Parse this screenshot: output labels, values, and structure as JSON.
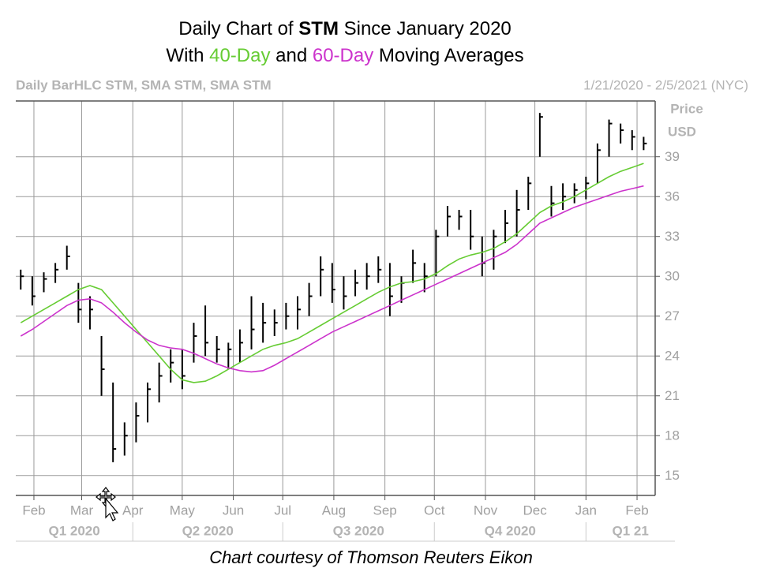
{
  "chart_data": {
    "type": "hlc",
    "title_lines": [
      [
        "Daily Chart of ",
        "STM",
        " Since January 2020"
      ],
      [
        "With ",
        "40-Day",
        " and ",
        "60-Day",
        " Moving Averages"
      ]
    ],
    "info_left": "Daily BarHLC STM, SMA STM, SMA STM",
    "info_right": "1/21/2020 - 2/5/2021 (NYC)",
    "y_axis_label": [
      "Price",
      "USD"
    ],
    "footer": "Chart courtesy of Thomson Reuters Eikon",
    "grid": true,
    "ylim": [
      13.5,
      43.2
    ],
    "yticks": [
      15,
      18,
      21,
      24,
      27,
      30,
      33,
      36,
      39
    ],
    "xlim": [
      "2020-01-21",
      "2021-02-12"
    ],
    "xticks": [
      {
        "value": "2020-02-01",
        "label": "Feb"
      },
      {
        "value": "2020-03-01",
        "label": "Mar"
      },
      {
        "value": "2020-04-01",
        "label": "Apr"
      },
      {
        "value": "2020-05-01",
        "label": "May"
      },
      {
        "value": "2020-06-01",
        "label": "Jun"
      },
      {
        "value": "2020-07-01",
        "label": "Jul"
      },
      {
        "value": "2020-08-01",
        "label": "Aug"
      },
      {
        "value": "2020-09-01",
        "label": "Sep"
      },
      {
        "value": "2020-10-01",
        "label": "Oct"
      },
      {
        "value": "2020-11-01",
        "label": "Nov"
      },
      {
        "value": "2020-12-01",
        "label": "Dec"
      },
      {
        "value": "2021-01-01",
        "label": "Jan"
      },
      {
        "value": "2021-02-01",
        "label": "Feb"
      }
    ],
    "quarters": [
      "Q1 2020",
      "Q2 2020",
      "Q3 2020",
      "Q4 2020",
      "Q1 21"
    ],
    "x": [
      "2020-01-24",
      "2020-01-31",
      "2020-02-07",
      "2020-02-14",
      "2020-02-21",
      "2020-02-28",
      "2020-03-06",
      "2020-03-13",
      "2020-03-20",
      "2020-03-27",
      "2020-04-03",
      "2020-04-10",
      "2020-04-17",
      "2020-04-24",
      "2020-05-01",
      "2020-05-08",
      "2020-05-15",
      "2020-05-22",
      "2020-05-29",
      "2020-06-05",
      "2020-06-12",
      "2020-06-19",
      "2020-06-26",
      "2020-07-03",
      "2020-07-10",
      "2020-07-17",
      "2020-07-24",
      "2020-07-31",
      "2020-08-07",
      "2020-08-14",
      "2020-08-21",
      "2020-08-28",
      "2020-09-04",
      "2020-09-11",
      "2020-09-18",
      "2020-09-25",
      "2020-10-02",
      "2020-10-09",
      "2020-10-16",
      "2020-10-23",
      "2020-10-30",
      "2020-11-06",
      "2020-11-13",
      "2020-11-20",
      "2020-11-27",
      "2020-12-04",
      "2020-12-11",
      "2020-12-18",
      "2020-12-25",
      "2021-01-01",
      "2021-01-08",
      "2021-01-15",
      "2021-01-22",
      "2021-01-29",
      "2021-02-05"
    ],
    "series": [
      {
        "color": "#000000",
        "high": [
          30.5,
          30,
          30.3,
          31,
          32.3,
          29.5,
          28.5,
          25.5,
          22,
          19,
          20.5,
          22,
          23.5,
          24.5,
          24.5,
          26.5,
          27.8,
          25.5,
          25,
          26,
          28.5,
          28,
          27.5,
          28,
          28.5,
          29.5,
          31.5,
          31,
          30,
          30.5,
          31,
          31.5,
          31,
          30,
          32,
          31,
          33.5,
          35.3,
          35,
          35,
          33,
          33.5,
          35,
          36.5,
          37.5,
          42.3,
          36.8,
          37,
          37,
          37.5,
          40,
          41.8,
          41.5,
          41,
          40.5
        ],
        "low": [
          29,
          27.8,
          28.8,
          29.5,
          30.5,
          26.5,
          26,
          21,
          16,
          16.5,
          17.5,
          19,
          20.5,
          22,
          21.5,
          23.5,
          24,
          23.5,
          23,
          23.5,
          24.5,
          25,
          25.5,
          26,
          26,
          27,
          28.5,
          28,
          27.5,
          28.5,
          29,
          29.5,
          27,
          28,
          29.5,
          28.8,
          30,
          33,
          33.5,
          32,
          30,
          30.5,
          32.5,
          33,
          35,
          39,
          34.5,
          35,
          35.5,
          35.8,
          37,
          39,
          40,
          39.5,
          39.5
        ],
        "close": [
          30,
          28.5,
          29.8,
          30.5,
          31.5,
          27.5,
          27.5,
          23,
          17,
          18,
          19.5,
          21.5,
          22.5,
          23.5,
          22.5,
          25.5,
          25,
          24.5,
          24.5,
          25,
          26,
          26.5,
          26.5,
          27,
          27.5,
          28.5,
          30.5,
          29,
          28.5,
          29.5,
          30,
          30.5,
          28.5,
          29.5,
          31,
          30,
          33,
          34.5,
          34.5,
          33,
          31,
          33,
          34,
          35,
          37,
          42,
          35.5,
          36,
          36.5,
          37,
          39.5,
          41.5,
          41,
          40.5,
          40
        ]
      },
      {
        "color": "#66cc33",
        "values": [
          26.5,
          27,
          27.5,
          28,
          28.5,
          29,
          29.3,
          29,
          28,
          27,
          26,
          25,
          24,
          23,
          22.2,
          22,
          22.1,
          22.5,
          23,
          23.5,
          24,
          24.5,
          24.8,
          25,
          25.3,
          25.8,
          26.3,
          26.8,
          27.3,
          27.8,
          28.3,
          28.8,
          29.2,
          29.5,
          29.6,
          29.8,
          30.2,
          30.8,
          31.3,
          31.6,
          31.8,
          32.1,
          32.6,
          33.2,
          34,
          34.8,
          35.3,
          35.6,
          36,
          36.5,
          37,
          37.5,
          37.9,
          38.2,
          38.5
        ]
      },
      {
        "color": "#cc33cc",
        "values": [
          25.5,
          26,
          26.6,
          27.2,
          27.8,
          28.2,
          28.3,
          28,
          27.3,
          26.5,
          25.8,
          25.2,
          24.8,
          24.6,
          24.5,
          24.2,
          23.8,
          23.4,
          23.1,
          22.9,
          22.8,
          22.9,
          23.3,
          23.8,
          24.3,
          24.8,
          25.3,
          25.8,
          26.2,
          26.6,
          27,
          27.4,
          27.8,
          28.2,
          28.6,
          29,
          29.4,
          29.8,
          30.2,
          30.6,
          31,
          31.4,
          31.8,
          32.4,
          33.2,
          34,
          34.4,
          34.8,
          35.2,
          35.5,
          35.8,
          36.1,
          36.4,
          36.6,
          36.8
        ]
      }
    ]
  }
}
